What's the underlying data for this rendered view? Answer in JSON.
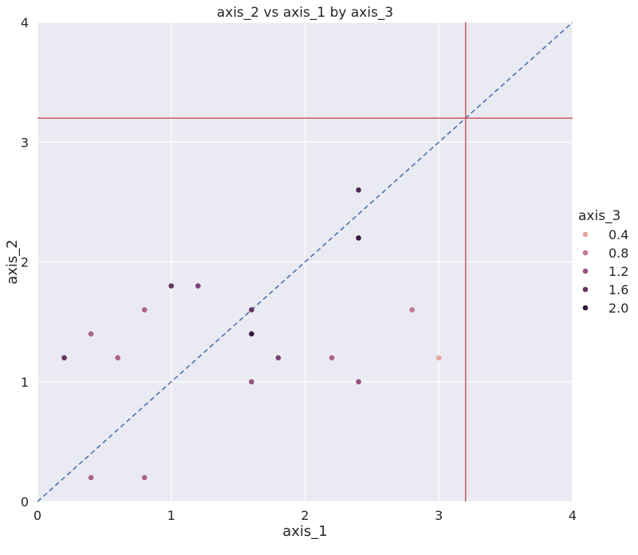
{
  "chart_data": {
    "type": "scatter",
    "title": "axis_2 vs axis_1 by axis_3",
    "xlabel": "axis_1",
    "ylabel": "axis_2",
    "xlim": [
      0,
      4
    ],
    "ylim": [
      0,
      4
    ],
    "xticks": [
      "0",
      "1",
      "2",
      "3",
      "4"
    ],
    "yticks": [
      "0",
      "1",
      "2",
      "3",
      "4"
    ],
    "grid": true,
    "hue": "axis_3",
    "legend": {
      "title": "axis_3",
      "placement": "right",
      "entries": [
        {
          "label": "0.4",
          "color": "#e8a7a0"
        },
        {
          "label": "0.8",
          "color": "#c27692"
        },
        {
          "label": "1.2",
          "color": "#94527f"
        },
        {
          "label": "1.6",
          "color": "#663360"
        },
        {
          "label": "2.0",
          "color": "#351b3d"
        }
      ]
    },
    "points": [
      {
        "x": 0.2,
        "y": 1.2,
        "c": 1.6
      },
      {
        "x": 0.4,
        "y": 1.4,
        "c": 1.0
      },
      {
        "x": 0.4,
        "y": 0.2,
        "c": 1.0
      },
      {
        "x": 0.6,
        "y": 1.2,
        "c": 1.0
      },
      {
        "x": 0.8,
        "y": 1.6,
        "c": 1.0
      },
      {
        "x": 0.8,
        "y": 0.2,
        "c": 1.0
      },
      {
        "x": 1.0,
        "y": 1.8,
        "c": 1.6
      },
      {
        "x": 1.2,
        "y": 1.8,
        "c": 1.4
      },
      {
        "x": 1.6,
        "y": 1.6,
        "c": 1.6
      },
      {
        "x": 1.6,
        "y": 1.4,
        "c": 2.0
      },
      {
        "x": 1.6,
        "y": 1.0,
        "c": 1.2
      },
      {
        "x": 1.8,
        "y": 1.2,
        "c": 1.4
      },
      {
        "x": 2.2,
        "y": 1.2,
        "c": 1.0
      },
      {
        "x": 2.4,
        "y": 2.6,
        "c": 1.8
      },
      {
        "x": 2.4,
        "y": 2.2,
        "c": 2.0
      },
      {
        "x": 2.4,
        "y": 1.0,
        "c": 1.2
      },
      {
        "x": 2.8,
        "y": 1.6,
        "c": 0.8
      },
      {
        "x": 3.0,
        "y": 1.2,
        "c": 0.4
      }
    ],
    "reference_lines": [
      {
        "kind": "diagonal",
        "from": [
          0,
          0
        ],
        "to": [
          4,
          4
        ],
        "style": "dashed",
        "color": "#4c72b0"
      },
      {
        "kind": "vertical",
        "x": 3.2,
        "color": "#c44e52"
      },
      {
        "kind": "horizontal",
        "y": 3.2,
        "color": "#c44e52"
      }
    ],
    "background": "#eaeaf2"
  }
}
